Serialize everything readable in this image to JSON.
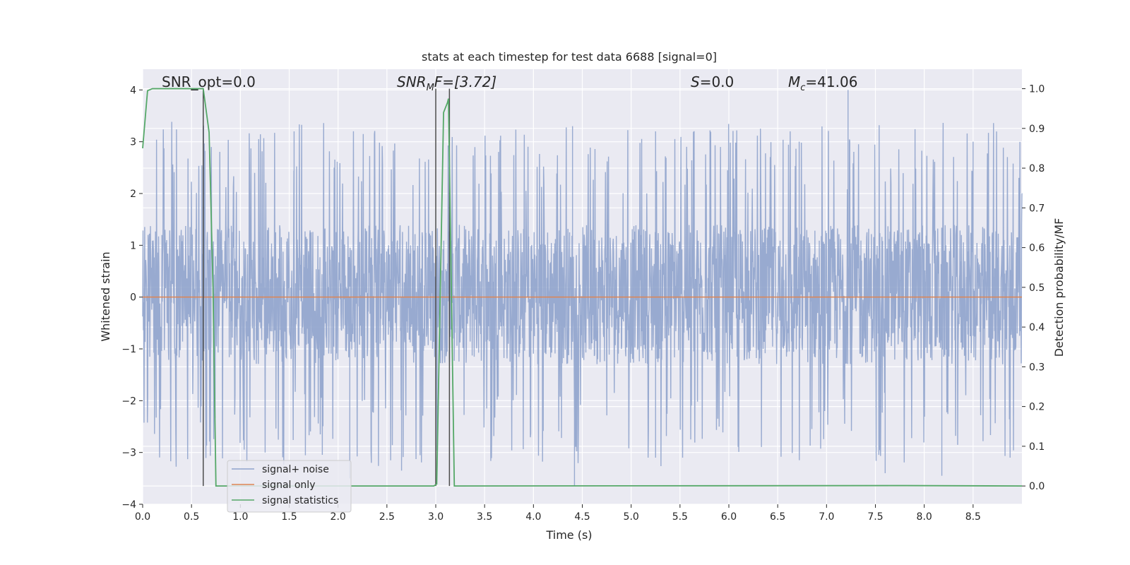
{
  "chart_data": {
    "type": "line",
    "title": "stats at each timestep for test data 6688 [signal=0]",
    "xlabel": "Time (s)",
    "ylabel_left": "Whitened strain",
    "ylabel_right": "Detection probability/MF",
    "xlim": [
      0.0,
      9.0
    ],
    "ylim_left": [
      -4.0,
      4.4
    ],
    "ylim_right": [
      -0.046,
      1.049
    ],
    "xticks": [
      "0.0",
      "0.5",
      "1.0",
      "1.5",
      "2.0",
      "2.5",
      "3.0",
      "3.5",
      "4.0",
      "4.5",
      "5.0",
      "5.5",
      "6.0",
      "6.5",
      "7.0",
      "7.5",
      "8.0",
      "8.5"
    ],
    "yticks_left": [
      "4",
      "3",
      "2",
      "1",
      "0",
      "−1",
      "−2",
      "−3",
      "−4"
    ],
    "yticks_right": [
      "1.0",
      "0.9",
      "0.8",
      "0.7",
      "0.6",
      "0.5",
      "0.4",
      "0.3",
      "0.2",
      "0.1",
      "0.0"
    ],
    "grid": true,
    "legend_position": "lower-left",
    "annotations": {
      "snr_opt": "SNR_opt=0.0",
      "snr_mf_sym": "SNR",
      "snr_mf_sub": "M",
      "snr_mf_rest": "F=[3.72]",
      "s_sym": "S",
      "s_rest": "=0.0",
      "mc_sym": "M",
      "mc_sub": "c",
      "mc_rest": "=41.06"
    },
    "series": [
      {
        "name": "signal+ noise",
        "color": "#8fa3cc",
        "axis": "left",
        "x_range": [
          0.0,
          9.0
        ],
        "typical_band": [
          -1.3,
          1.4
        ],
        "envelope": [
          -3.65,
          4.0
        ],
        "notable_peaks": [
          {
            "x": 4.4,
            "y": 3.3
          },
          {
            "x": 7.22,
            "y": 4.0
          },
          {
            "x": 5.25,
            "y": 3.2
          },
          {
            "x": 1.55,
            "y": 3.2
          },
          {
            "x": 6.72,
            "y": 3.0
          },
          {
            "x": 8.5,
            "y": 3.0
          }
        ],
        "notable_troughs": [
          {
            "x": 2.12,
            "y": -3.5
          },
          {
            "x": 2.65,
            "y": -3.35
          },
          {
            "x": 4.42,
            "y": -3.65
          },
          {
            "x": 7.6,
            "y": -3.4
          },
          {
            "x": 8.18,
            "y": -3.45
          },
          {
            "x": 5.25,
            "y": -3.1
          }
        ]
      },
      {
        "name": "signal only",
        "color": "#dd8452",
        "axis": "left",
        "x": [
          0.0,
          9.0
        ],
        "values": [
          0.0,
          0.0
        ]
      },
      {
        "name": "signal statistics",
        "color": "#55a868",
        "axis": "right",
        "x": [
          0.0,
          0.05,
          0.1,
          0.15,
          0.6,
          0.62,
          0.68,
          0.72,
          0.75,
          2.98,
          3.01,
          3.08,
          3.12,
          3.13,
          3.19,
          7.8,
          9.0
        ],
        "values": [
          0.85,
          0.995,
          1.0,
          1.0,
          1.0,
          1.0,
          0.89,
          0.5,
          0.0,
          0.0,
          0.005,
          0.94,
          0.965,
          0.975,
          0.0,
          0.001,
          0.0
        ]
      }
    ],
    "markers": [
      {
        "x": 0.62,
        "ymin": 0.0,
        "ymax": 1.0,
        "color": "#4d4d4d"
      },
      {
        "x": 3.0,
        "ymin": 0.0,
        "ymax": 1.0,
        "color": "#4d4d4d"
      },
      {
        "x": 3.14,
        "ymin": 0.0,
        "ymax": 1.0,
        "color": "#4d4d4d"
      }
    ]
  }
}
